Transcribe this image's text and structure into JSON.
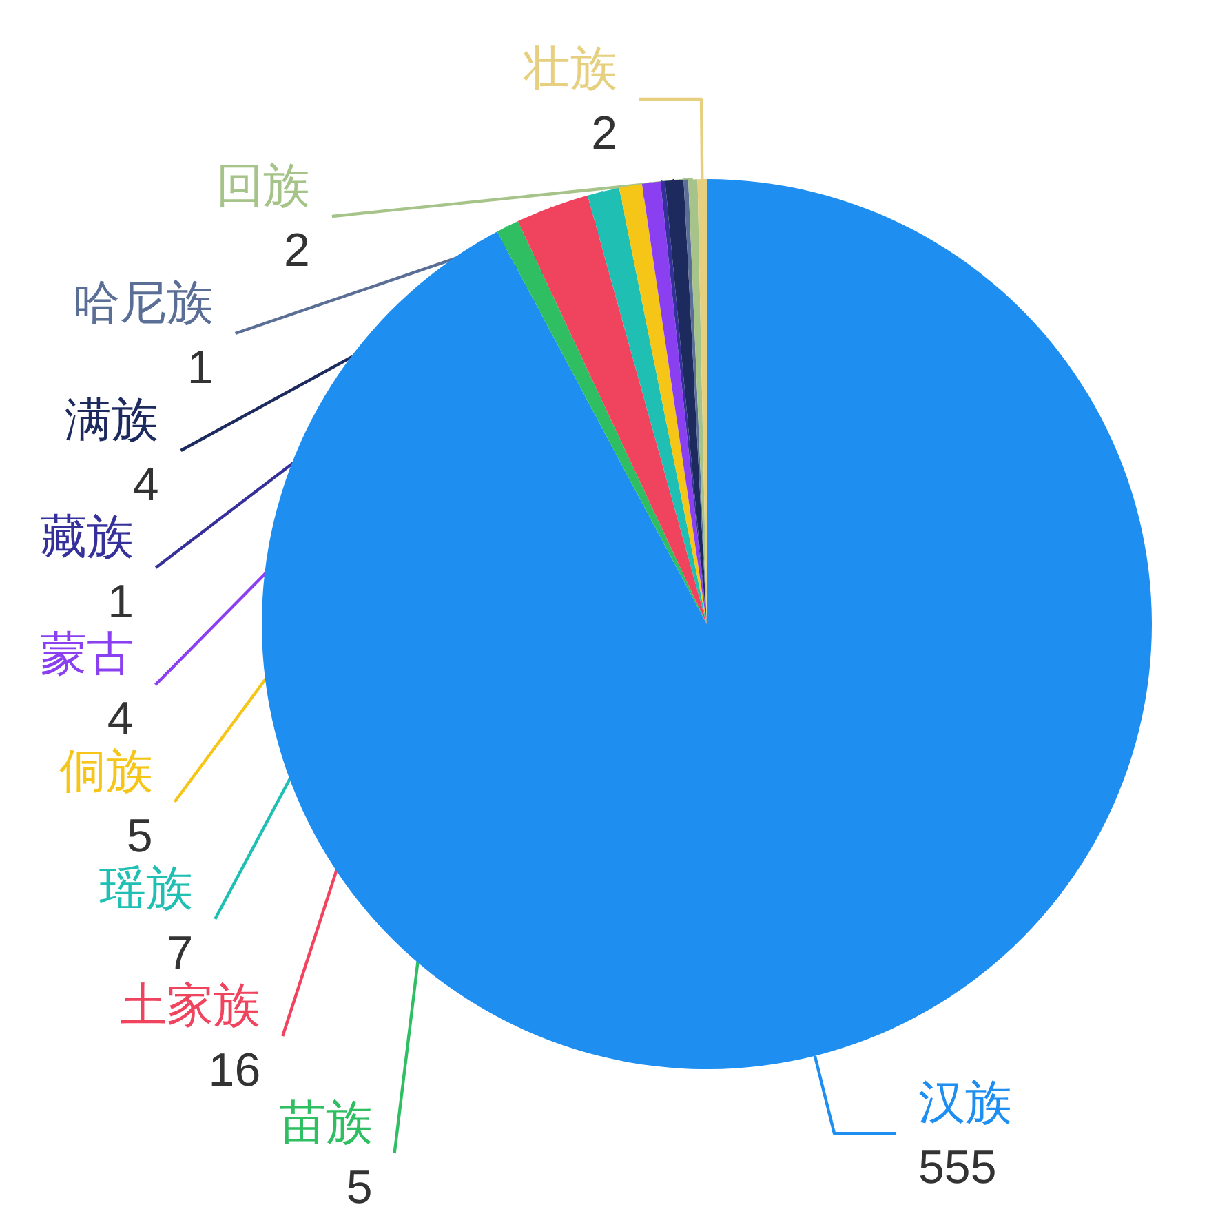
{
  "chart_data": {
    "type": "pie",
    "categories": [
      "汉族",
      "苗族",
      "土家族",
      "瑶族",
      "侗族",
      "蒙古",
      "藏族",
      "满族",
      "哈尼族",
      "回族",
      "壮族"
    ],
    "values": [
      555,
      5,
      16,
      7,
      5,
      4,
      1,
      4,
      1,
      2,
      2
    ],
    "colors": [
      "#1e8ef0",
      "#2fbf62",
      "#f0435e",
      "#1fbfb3",
      "#f5c518",
      "#8a3ff0",
      "#35309a",
      "#1c2a5e",
      "#5a6e96",
      "#a6c48a",
      "#e6cf7e"
    ],
    "data_labels": true
  }
}
